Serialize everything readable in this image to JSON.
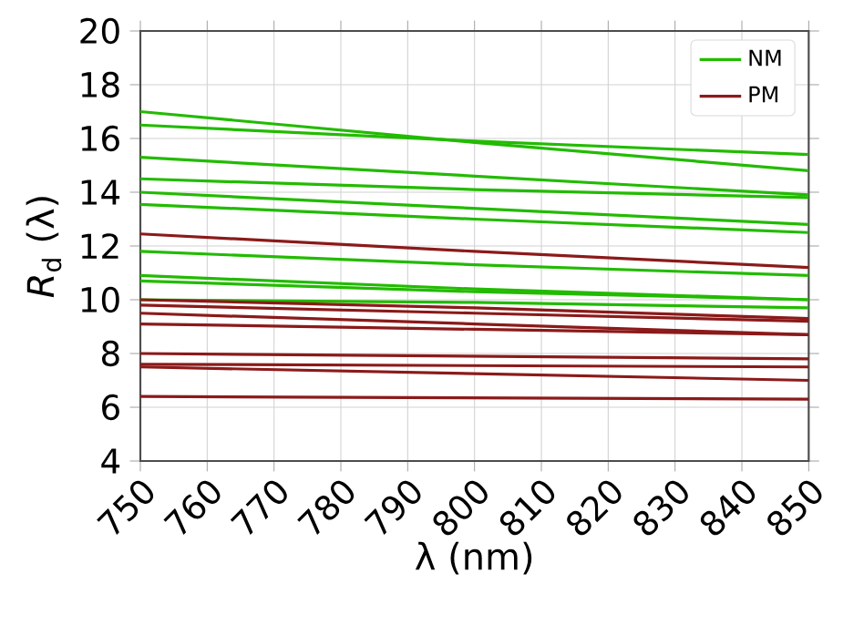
{
  "chart_data": {
    "type": "line",
    "xlabel": "λ (nm)",
    "ylabel": "*R*$_{d}$ (λ)",
    "x": [
      750,
      800,
      850
    ],
    "series": [
      {
        "name": "NM",
        "color": "#22bb00",
        "values": [
          17.0,
          15.85,
          14.8
        ]
      },
      {
        "color": "#22bb00",
        "values": [
          16.5,
          15.9,
          15.4
        ]
      },
      {
        "color": "#22bb00",
        "values": [
          15.3,
          14.6,
          13.9
        ]
      },
      {
        "color": "#22bb00",
        "values": [
          14.5,
          14.1,
          13.8
        ]
      },
      {
        "color": "#22bb00",
        "values": [
          14.0,
          13.4,
          12.8
        ]
      },
      {
        "color": "#22bb00",
        "values": [
          13.55,
          13.0,
          12.5
        ]
      },
      {
        "color": "#22bb00",
        "values": [
          11.8,
          11.3,
          10.9
        ]
      },
      {
        "color": "#22bb00",
        "values": [
          10.9,
          10.4,
          10.0
        ]
      },
      {
        "color": "#22bb00",
        "values": [
          10.7,
          10.3,
          10.0
        ]
      },
      {
        "color": "#22bb00",
        "values": [
          10.0,
          9.9,
          9.7
        ]
      },
      {
        "name": "PM",
        "color": "#8b1a1a",
        "values": [
          12.45,
          11.8,
          11.2
        ]
      },
      {
        "color": "#8b1a1a",
        "values": [
          10.0,
          9.7,
          9.3
        ]
      },
      {
        "color": "#8b1a1a",
        "values": [
          9.8,
          9.5,
          9.2
        ]
      },
      {
        "color": "#8b1a1a",
        "values": [
          9.5,
          9.1,
          8.7
        ]
      },
      {
        "color": "#8b1a1a",
        "values": [
          9.1,
          8.9,
          8.7
        ]
      },
      {
        "color": "#8b1a1a",
        "values": [
          8.0,
          7.9,
          7.8
        ]
      },
      {
        "color": "#8b1a1a",
        "values": [
          7.6,
          7.55,
          7.5
        ]
      },
      {
        "color": "#8b1a1a",
        "values": [
          7.5,
          7.25,
          7.0
        ]
      },
      {
        "color": "#8b1a1a",
        "values": [
          6.4,
          6.35,
          6.3
        ]
      }
    ],
    "xlim": [
      750,
      850
    ],
    "xticks": [
      750,
      760,
      770,
      780,
      790,
      800,
      810,
      820,
      830,
      840,
      850
    ],
    "ylim": [
      4,
      20
    ],
    "yticks": [
      4,
      6,
      8,
      10,
      12,
      14,
      16,
      18,
      20
    ],
    "grid": true,
    "legend": "top right",
    "marker": "none",
    "line_style": "solid"
  }
}
